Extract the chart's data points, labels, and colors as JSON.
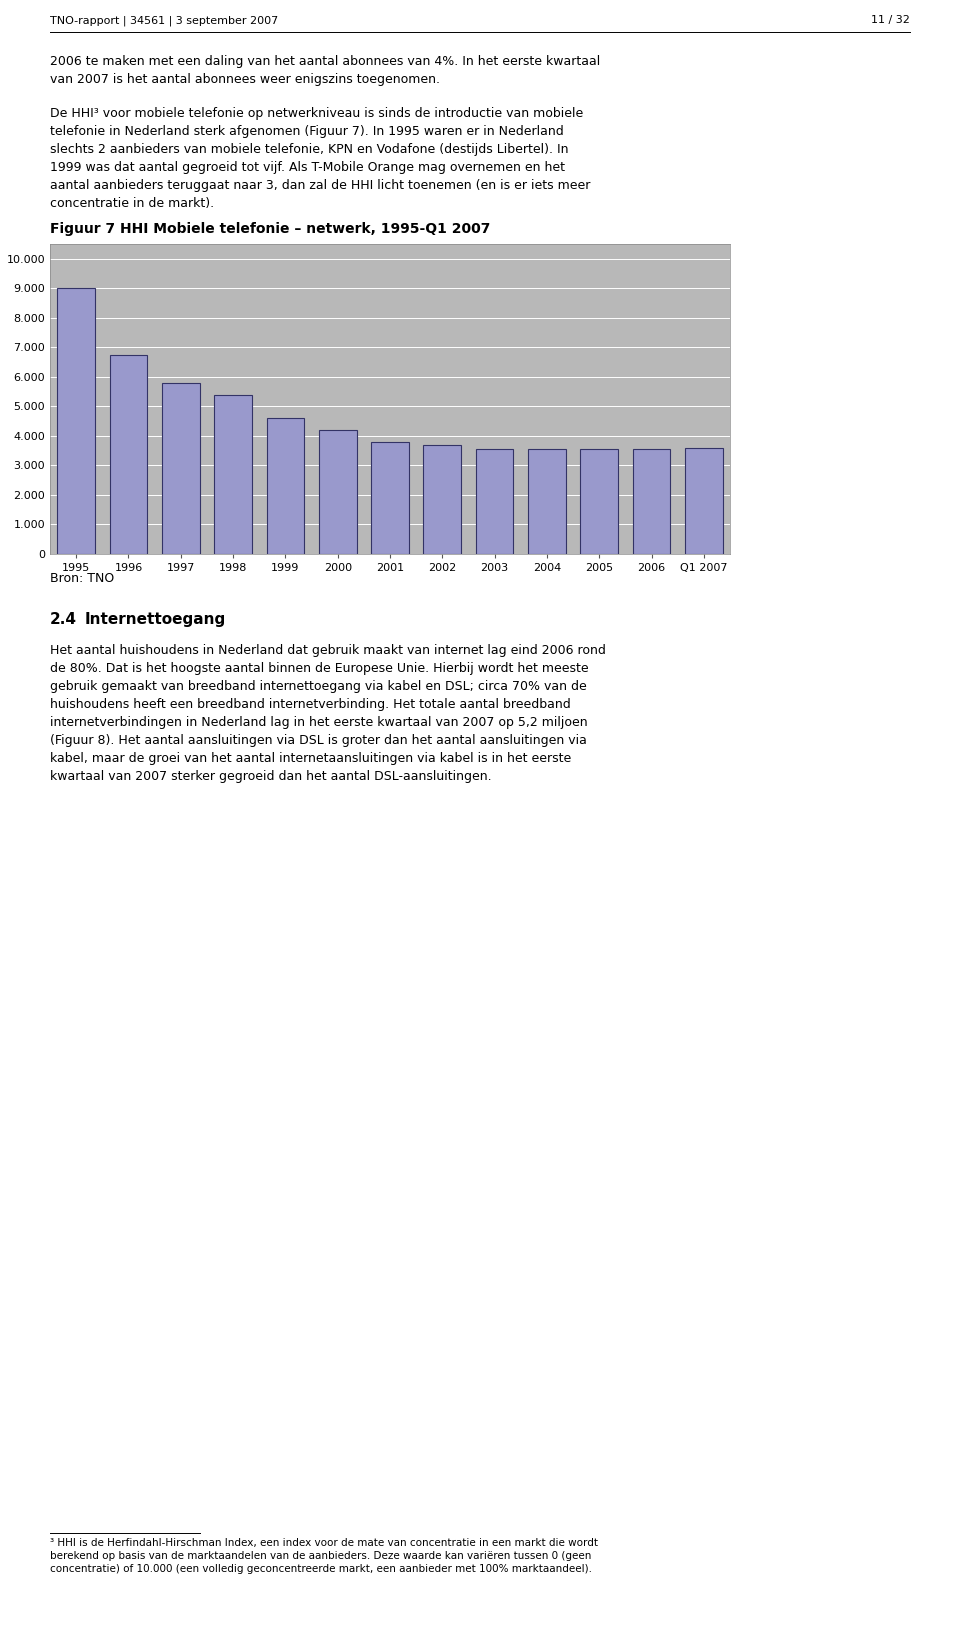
{
  "title": "Figuur 7 HHI Mobiele telefonie – netwerk, 1995-Q1 2007",
  "categories": [
    "1995",
    "1996",
    "1997",
    "1998",
    "1999",
    "2000",
    "2001",
    "2002",
    "2003",
    "2004",
    "2005",
    "2006",
    "Q1 2007"
  ],
  "values": [
    9000,
    6750,
    5800,
    5400,
    4600,
    4200,
    3800,
    3700,
    3550,
    3550,
    3550,
    3550,
    3580
  ],
  "bar_color": "#9999cc",
  "bar_edge_color": "#333366",
  "background_plot": "#b8b8b8",
  "background_fig": "#ffffff",
  "plot_border_color": "#999999",
  "yticks": [
    0,
    1000,
    2000,
    3000,
    4000,
    5000,
    6000,
    7000,
    8000,
    9000,
    10000
  ],
  "ytick_labels": [
    "0",
    "1.000",
    "2.000",
    "3.000",
    "4.000",
    "5.000",
    "6.000",
    "7.000",
    "8.000",
    "9.000",
    "10.000"
  ],
  "ylim": [
    0,
    10500
  ],
  "source_label": "Bron: TNO",
  "header_left": "TNO-rapport | 34561 | 3 september 2007",
  "header_right": "11 / 32",
  "title_fontsize": 10,
  "tick_fontsize": 8,
  "source_fontsize": 9,
  "body_fontsize": 9,
  "header_fontsize": 8,
  "fig_title_fontsize": 10,
  "para1": "2006 te maken met een daling van het aantal abonnees van 4%. In het eerste kwartaal\nvan 2007 is het aantal abonnees weer enigszins toegenomen.",
  "para2": "De HHI³ voor mobiele telefonie op netwerkniveau is sinds de introductie van mobiele\ntelefonie in Nederland sterk afgenomen (Figuur 7). In 1995 waren er in Nederland\nslechts 2 aanbieders van mobiele telefonie, KPN en Vodafone (destijds Libertel). In\n1999 was dat aantal gegroeid tot vijf. Als T-Mobile Orange mag overnemen en het\naantal aanbieders teruggaat naar 3, dan zal de HHI licht toenemen (en is er iets meer\nconcentratie in de markt).",
  "section_num": "2.4",
  "section_title": "Internettoegang",
  "para3": "Het aantal huishoudens in Nederland dat gebruik maakt van internet lag eind 2006 rond\nde 80%. Dat is het hoogste aantal binnen de Europese Unie. Hierbij wordt het meeste\ngebruik gemaakt van breedband internettoegang via kabel en DSL; circa 70% van de\nhuishoudens heeft een breedband internetverbinding. Het totale aantal breedband\ninternetverbindingen in Nederland lag in het eerste kwartaal van 2007 op 5,2 miljoen\n(Figuur 8). Het aantal aansluitingen via DSL is groter dan het aantal aansluitingen via\nkabel, maar de groei van het aantal internetaansluitingen via kabel is in het eerste\nkwartaal van 2007 sterker gegroeid dan het aantal DSL-aansluitingen.",
  "footnote_line": "³ HHI is de Herfindahl-Hirschman Index, een index voor de mate van concentratie in een markt die wordt\nberekend op basis van de marktaandelen van de aanbieders. Deze waarde kan variëren tussen 0 (geen\nconcentratie) of 10.000 (een volledig geconcentreerde markt, een aanbieder met 100% marktaandeel)."
}
